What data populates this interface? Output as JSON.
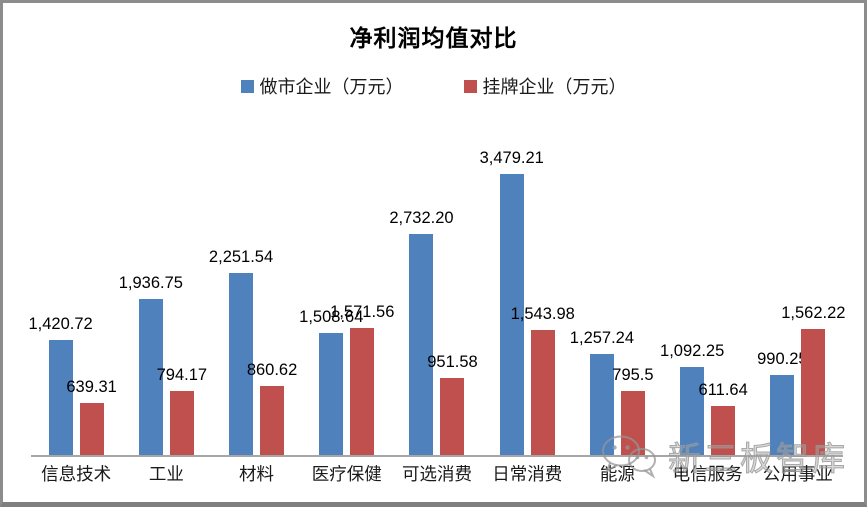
{
  "title": "净利润均值对比",
  "legend": [
    {
      "label": "做市企业（万元）",
      "color": "#4f81bd"
    },
    {
      "label": "挂牌企业（万元）",
      "color": "#c0504d"
    }
  ],
  "watermark": {
    "icon": "wechat-icon",
    "text": "新三板智库"
  },
  "colors": {
    "series1": "#4f81bd",
    "series2": "#c0504d",
    "axis_line": "#a6a6a6",
    "frame_border": "#8c8c8c"
  },
  "chart_data": {
    "type": "bar",
    "title": "净利润均值对比",
    "xlabel": "",
    "ylabel": "",
    "categories": [
      "信息技术",
      "工业",
      "材料",
      "医疗保健",
      "可选消费",
      "日常消费",
      "能源",
      "电信服务",
      "公用事业"
    ],
    "series": [
      {
        "name": "做市企业（万元）",
        "color": "#4f81bd",
        "values": [
          1420.72,
          1936.75,
          2251.54,
          1508.64,
          2732.2,
          3479.21,
          1257.24,
          1092.25,
          990.25
        ],
        "labels": [
          "1,420.72",
          "1,936.75",
          "2,251.54",
          "1,508.64",
          "2,732.20",
          "3,479.21",
          "1,257.24",
          "1,092.25",
          "990.25"
        ]
      },
      {
        "name": "挂牌企业（万元）",
        "color": "#c0504d",
        "values": [
          639.31,
          794.17,
          860.62,
          1571.56,
          951.58,
          1543.98,
          795.5,
          611.64,
          1562.22
        ],
        "labels": [
          "639.31",
          "794.17",
          "860.62",
          "1,571.56",
          "951.58",
          "1,543.98",
          "795.5",
          "611.64",
          "1,562.22"
        ]
      }
    ],
    "ylim": [
      0,
      4260
    ],
    "grid": false,
    "data_labels": true,
    "legend_position": "top"
  }
}
